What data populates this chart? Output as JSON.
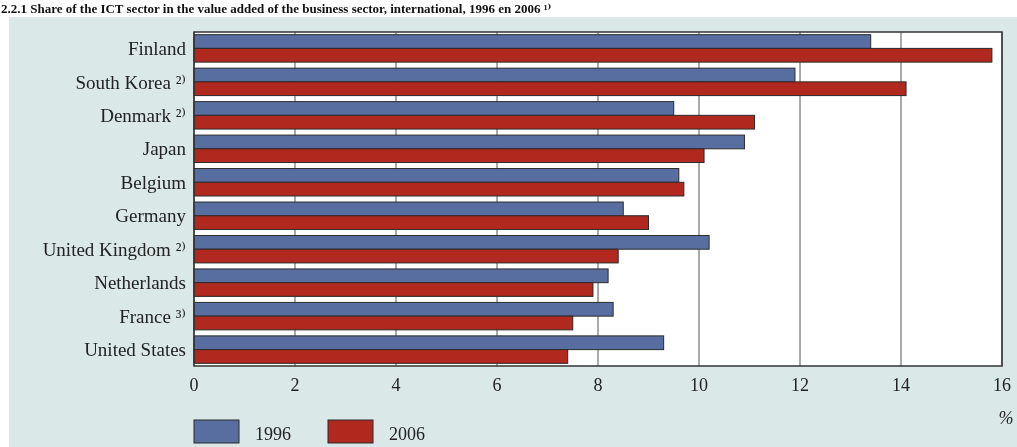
{
  "chart_data": {
    "type": "bar",
    "orientation": "horizontal",
    "title": "2.2.1 Share of the ICT sector in the value added of the business sector, international, 1996 en 2006 ¹⁾",
    "xlabel": "%",
    "categories": [
      "Finland",
      "South Korea ²⁾",
      "Denmark ²⁾",
      "Japan",
      "Belgium",
      "Germany",
      "United Kingdom ²⁾",
      "Netherlands",
      "France ³⁾",
      "United States"
    ],
    "series": [
      {
        "name": "1996",
        "color": "#596ea0",
        "values": [
          13.4,
          11.9,
          9.5,
          10.9,
          9.6,
          8.5,
          10.2,
          8.2,
          8.3,
          9.3
        ]
      },
      {
        "name": "2006",
        "color": "#b0281e",
        "values": [
          15.8,
          14.1,
          11.1,
          10.1,
          9.7,
          9.0,
          8.4,
          7.9,
          7.5,
          7.4
        ]
      }
    ],
    "xlim": [
      0,
      16
    ],
    "xticks": [
      0,
      2,
      4,
      6,
      8,
      10,
      12,
      14,
      16
    ],
    "grid": "x",
    "legend": "bottom"
  }
}
